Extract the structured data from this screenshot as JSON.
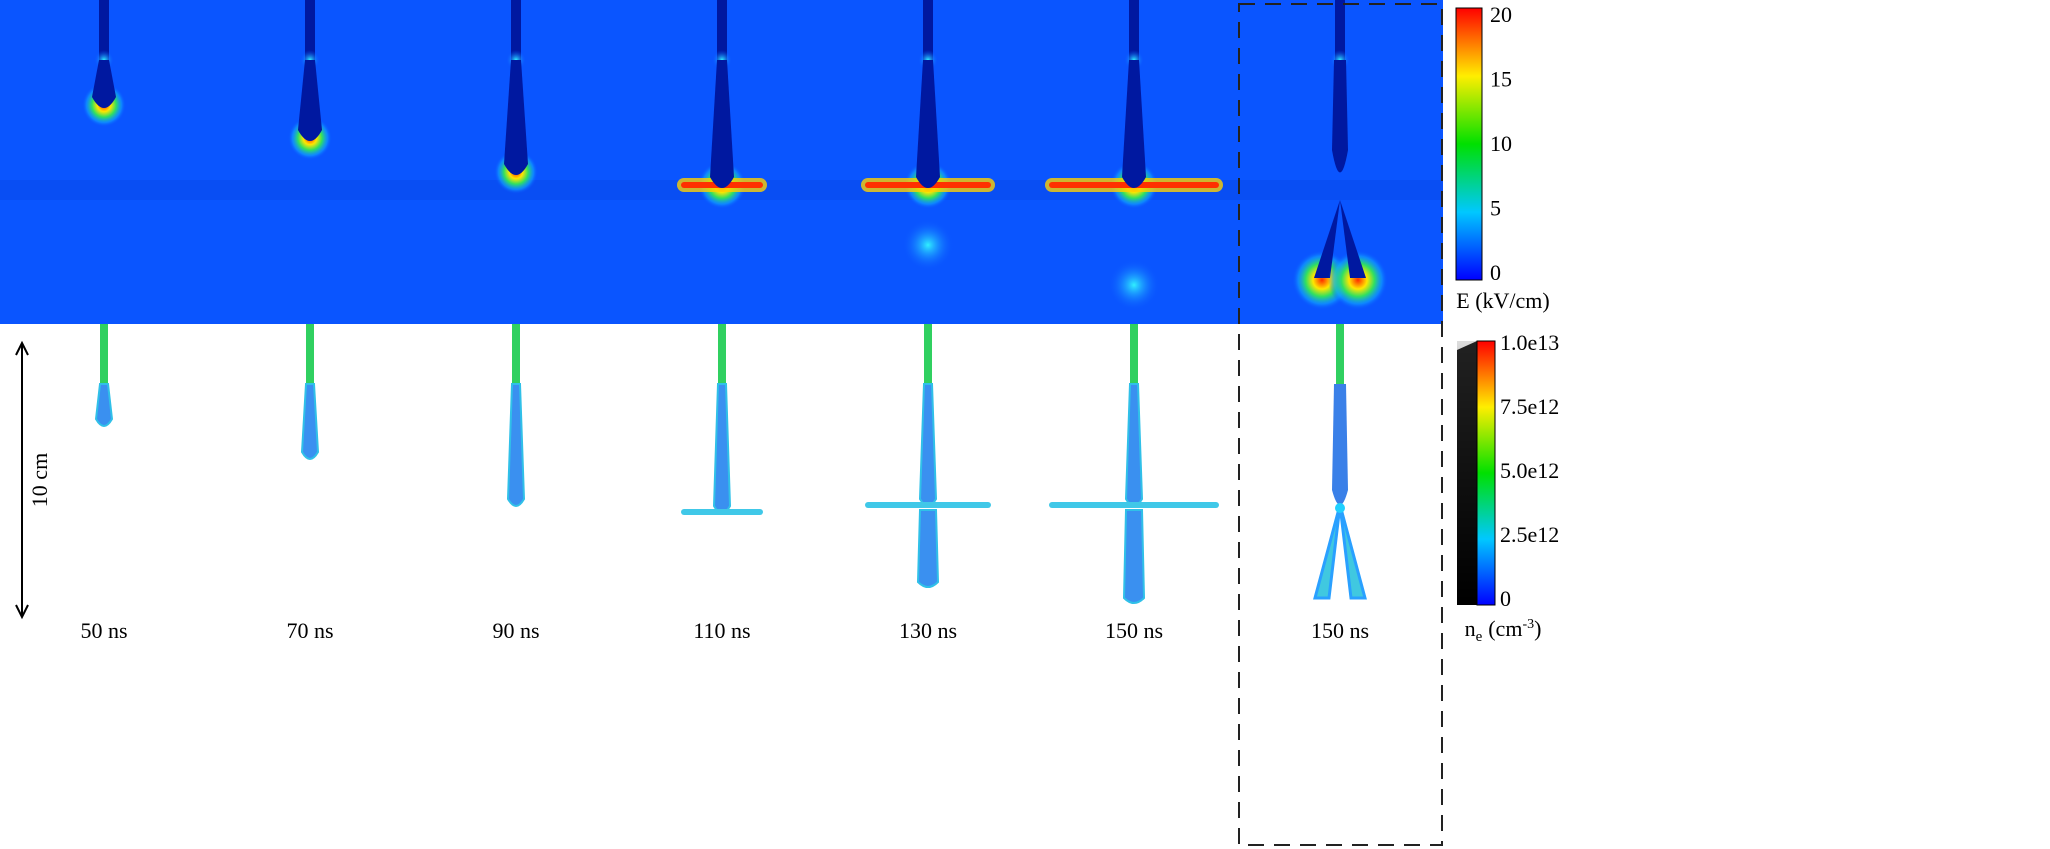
{
  "panels": [
    {
      "time": "50 ns"
    },
    {
      "time": "70 ns"
    },
    {
      "time": "90 ns"
    },
    {
      "time": "110 ns"
    },
    {
      "time": "130 ns"
    },
    {
      "time": "150 ns"
    },
    {
      "time": "150 ns"
    }
  ],
  "scale_bar": "10 cm",
  "field_colorbar": {
    "label": "E (kV/cm)",
    "ticks": [
      "20",
      "15",
      "10",
      "5",
      "0"
    ]
  },
  "density_colorbar": {
    "label": {
      "symbol": "n",
      "subscript": "e",
      "unit": "(cm",
      "exponent": "-3",
      "close": ")"
    },
    "ticks": [
      "1.0e13",
      "7.5e12",
      "5.0e12",
      "2.5e12",
      "0"
    ]
  }
}
